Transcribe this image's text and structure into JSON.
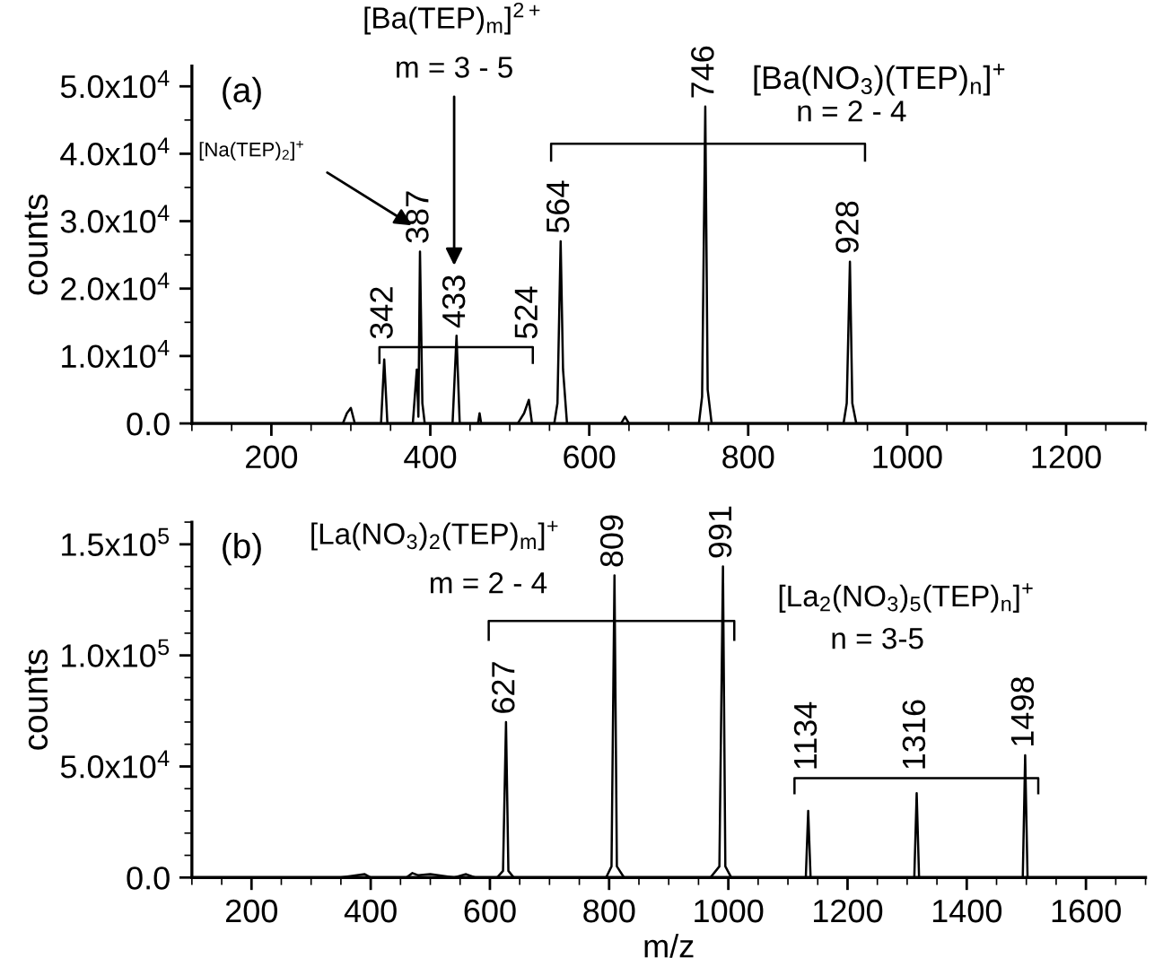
{
  "chart_data": [
    {
      "type": "line",
      "ylabel": "counts",
      "color": "#000000",
      "x": [
        100,
        290,
        295,
        300,
        305,
        338,
        342,
        346,
        378,
        383,
        385,
        387,
        390,
        393,
        428,
        433,
        437,
        460,
        462,
        464,
        510,
        518,
        524,
        528,
        556,
        560,
        564,
        567,
        572,
        640,
        645,
        650,
        738,
        742,
        746,
        749,
        754,
        920,
        924,
        928,
        931,
        936,
        1300
      ],
      "values": [
        0,
        0,
        1500,
        2300,
        0,
        0,
        9500,
        0,
        0,
        8000,
        1000,
        25500,
        3000,
        0,
        0,
        13000,
        0,
        0,
        1500,
        0,
        0,
        1500,
        3500,
        0,
        0,
        3000,
        27000,
        8000,
        0,
        0,
        1000,
        0,
        0,
        4000,
        47000,
        5000,
        0,
        0,
        3000,
        24000,
        3000,
        0,
        0
      ],
      "xlim": [
        100,
        1300
      ],
      "ylim": [
        0,
        53000
      ],
      "xticks": [
        200,
        400,
        600,
        800,
        1000,
        1200
      ],
      "yticks": [
        {
          "value": 0,
          "label": "0.0"
        },
        {
          "value": 10000,
          "label": "1.0x10$^{4}$"
        },
        {
          "value": 20000,
          "label": "2.0x10$^{4}$"
        },
        {
          "value": 30000,
          "label": "3.0x10$^{4}$"
        },
        {
          "value": 40000,
          "label": "4.0x10$^{4}$"
        },
        {
          "value": 50000,
          "label": "5.0x10$^{4}$"
        }
      ],
      "annotations": [
        "(a)",
        "[Ba(TEP)$_{m}$]$^{2+}$",
        "m = 3 - 5",
        "[Na(TEP)$_{2}$]$^{+}$",
        "[Ba(NO$_{3}$)(TEP)$_{n}$]$^{+}$",
        "n = 2 - 4",
        {
          "text": "342",
          "x": 342,
          "y": 9500
        },
        {
          "text": "387",
          "x": 387,
          "y": 25500
        },
        {
          "text": "433",
          "x": 433,
          "y": 13000
        },
        {
          "text": "524",
          "x": 524,
          "y": 3500
        },
        {
          "text": "564",
          "x": 564,
          "y": 27000
        },
        {
          "text": "746",
          "x": 746,
          "y": 47000
        },
        {
          "text": "928",
          "x": 928,
          "y": 24000
        }
      ]
    },
    {
      "type": "line",
      "ylabel": "counts",
      "xlabel": "m/z",
      "color": "#000000",
      "x": [
        100,
        350,
        390,
        400,
        460,
        470,
        480,
        500,
        540,
        560,
        575,
        612,
        622,
        627,
        631,
        640,
        795,
        804,
        809,
        813,
        825,
        970,
        985,
        991,
        995,
        1005,
        1130,
        1134,
        1138,
        1312,
        1316,
        1320,
        1494,
        1498,
        1502,
        1700
      ],
      "values": [
        0,
        0,
        1500,
        0,
        0,
        2000,
        1000,
        1500,
        0,
        1500,
        0,
        0,
        3000,
        70000,
        3000,
        0,
        0,
        5000,
        136000,
        5000,
        0,
        0,
        5000,
        140000,
        5000,
        0,
        0,
        30000,
        0,
        0,
        38000,
        0,
        0,
        55000,
        0,
        0
      ],
      "xlim": [
        100,
        1700
      ],
      "ylim": [
        0,
        160000
      ],
      "xticks": [
        200,
        400,
        600,
        800,
        1000,
        1200,
        1400,
        1600
      ],
      "yticks": [
        {
          "value": 0,
          "label": "0.0"
        },
        {
          "value": 50000,
          "label": "5.0x10$^{4}$"
        },
        {
          "value": 100000,
          "label": "1.0x10$^{5}$"
        },
        {
          "value": 150000,
          "label": "1.5x10$^{5}$"
        }
      ],
      "annotations": [
        "(b)",
        "[La(NO$_{3}$)$_{2}$(TEP)$_{m}$]$^{+}$",
        "m = 2 - 4",
        "[La$_{2}$(NO$_{3}$)$_{5}$(TEP)$_{n}$]$^{+}$",
        "n = 3-5",
        {
          "text": "627",
          "x": 627,
          "y": 70000
        },
        {
          "text": "809",
          "x": 809,
          "y": 136000
        },
        {
          "text": "991",
          "x": 991,
          "y": 140000
        },
        {
          "text": "1134",
          "x": 1134,
          "y": 30000
        },
        {
          "text": "1316",
          "x": 1316,
          "y": 38000
        },
        {
          "text": "1498",
          "x": 1498,
          "y": 55000
        }
      ]
    }
  ]
}
